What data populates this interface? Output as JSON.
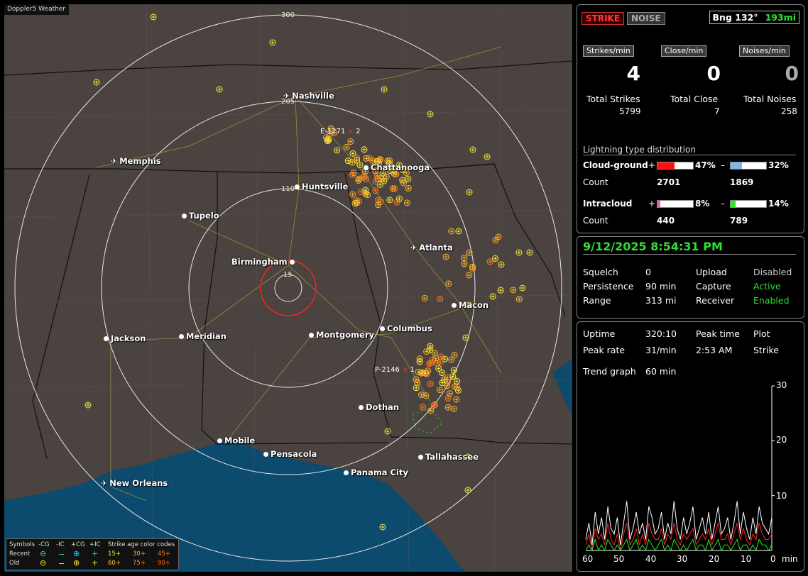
{
  "app": {
    "title": "Doppler5 Weather"
  },
  "map": {
    "cities": [
      {
        "name": "Nashville",
        "kind": "airport"
      },
      {
        "name": "Memphis",
        "kind": "airport"
      },
      {
        "name": "Chattanooga",
        "kind": "city"
      },
      {
        "name": "Huntsville",
        "kind": "city"
      },
      {
        "name": "Tupelo",
        "kind": "city"
      },
      {
        "name": "Atlanta",
        "kind": "airport"
      },
      {
        "name": "Birmingham",
        "kind": "city"
      },
      {
        "name": "Macon",
        "kind": "city"
      },
      {
        "name": "Columbus",
        "kind": "city"
      },
      {
        "name": "Jackson",
        "kind": "city"
      },
      {
        "name": "Meridian",
        "kind": "city"
      },
      {
        "name": "Montgomery",
        "kind": "city"
      },
      {
        "name": "Dothan",
        "kind": "city"
      },
      {
        "name": "Mobile",
        "kind": "city"
      },
      {
        "name": "Pensacola",
        "kind": "city"
      },
      {
        "name": "Tallahassee",
        "kind": "city"
      },
      {
        "name": "Panama City",
        "kind": "city"
      },
      {
        "name": "New Orleans",
        "kind": "airport"
      }
    ],
    "range_rings": [
      "300",
      "205",
      "110",
      "15"
    ],
    "storms": [
      {
        "id": "E-1271",
        "count": "2"
      },
      {
        "id": "P-2146",
        "count": "1"
      }
    ]
  },
  "legend": {
    "header": [
      "Symbols",
      "-CG",
      "-IC",
      "+CG",
      "+IC",
      "Strike age color codes"
    ],
    "recent_label": "Recent",
    "old_label": "Old",
    "recent_ages": [
      "15+",
      "30+",
      "45+"
    ],
    "old_ages": [
      "60+",
      "75+",
      "90+"
    ],
    "colors": {
      "recent_cyan": "#33ccdd",
      "old_yellow": "#ffee33",
      "age_15": "#ffee33",
      "age_30": "#ffb030",
      "age_45": "#ff8020",
      "age_60": "#ffc030",
      "age_75": "#ff8a30",
      "age_90": "#ff6a20"
    }
  },
  "status": {
    "strike_button": "STRIKE",
    "noise_button": "NOISE",
    "bearing": "Bng 132°",
    "range": "193mi",
    "rates": [
      {
        "label": "Strikes/min",
        "value": "4",
        "color": "#ffffff"
      },
      {
        "label": "Close/min",
        "value": "0",
        "color": "#ffffff"
      },
      {
        "label": "Noises/min",
        "value": "0",
        "color": "#aaaaaa"
      }
    ],
    "totals": [
      {
        "label": "Total Strikes",
        "value": "5799"
      },
      {
        "label": "Total Close",
        "value": "7"
      },
      {
        "label": "Total Noises",
        "value": "258"
      }
    ],
    "distribution": {
      "title": "Lightning type distribution",
      "cloud_ground_label": "Cloud-ground",
      "intracloud_label": "Intracloud",
      "count_label": "Count",
      "cg_pos": {
        "sign": "+",
        "pct": "47%",
        "fraction": 0.47,
        "color": "#ff1010",
        "count": "2701"
      },
      "cg_neg": {
        "sign": "–",
        "pct": "32%",
        "fraction": 0.32,
        "color": "#7fb8e8",
        "count": "1869"
      },
      "ic_pos": {
        "sign": "+",
        "pct": "8%",
        "fraction": 0.08,
        "color": "#e060b0",
        "count": "440"
      },
      "ic_neg": {
        "sign": "–",
        "pct": "14%",
        "fraction": 0.14,
        "color": "#22ee22",
        "count": "789"
      }
    }
  },
  "settings": {
    "datetime": "9/12/2025 8:54:31 PM",
    "squelch_label": "Squelch",
    "squelch": "0",
    "persistence_label": "Persistence",
    "persistence": "90 min",
    "range_label": "Range",
    "range": "313 mi",
    "upload_label": "Upload",
    "upload": "Disabled",
    "capture_label": "Capture",
    "capture": "Active",
    "receiver_label": "Receiver",
    "receiver": "Enabled"
  },
  "trend": {
    "uptime_label": "Uptime",
    "uptime": "320:10",
    "peak_time_label": "Peak time",
    "plot_label": "Plot",
    "peak_rate_label": "Peak rate",
    "peak_rate": "31/min",
    "peak_time": "2:53 AM",
    "plot": "Strike",
    "trend_graph_label": "Trend graph",
    "trend_graph": "60 min",
    "y_ticks": [
      "30",
      "20",
      "10"
    ],
    "x_ticks": [
      "60",
      "50",
      "40",
      "30",
      "20",
      "10",
      "0"
    ],
    "x_unit": "min"
  },
  "chart_data": {
    "type": "line",
    "ylim": [
      0,
      30
    ],
    "xlim": [
      60,
      0
    ],
    "xlabel": "min",
    "series": [
      {
        "color": "#ffffff",
        "values": [
          2,
          5,
          1,
          7,
          3,
          6,
          2,
          8,
          4,
          3,
          6,
          1,
          5,
          9,
          2,
          4,
          7,
          3,
          5,
          2,
          8,
          6,
          3,
          4,
          7,
          2,
          5,
          3,
          9,
          4,
          2,
          6,
          3,
          5,
          8,
          2,
          4,
          6,
          3,
          7,
          2,
          5,
          8,
          3,
          4,
          6,
          2,
          5,
          9,
          3,
          7,
          4,
          2,
          6,
          3,
          8,
          5,
          4,
          3,
          6
        ]
      },
      {
        "color": "#ff2020",
        "values": [
          1,
          3,
          0,
          4,
          2,
          3,
          1,
          5,
          2,
          1,
          3,
          0,
          3,
          5,
          1,
          2,
          4,
          1,
          3,
          1,
          5,
          3,
          2,
          2,
          4,
          1,
          3,
          2,
          5,
          2,
          1,
          3,
          2,
          3,
          4,
          1,
          2,
          3,
          2,
          4,
          1,
          3,
          5,
          2,
          2,
          3,
          1,
          3,
          5,
          2,
          4,
          2,
          1,
          3,
          2,
          5,
          3,
          2,
          2,
          3
        ]
      },
      {
        "color": "#22ee22",
        "values": [
          0,
          1,
          0,
          2,
          0,
          1,
          0,
          2,
          1,
          0,
          1,
          0,
          1,
          2,
          0,
          1,
          2,
          0,
          1,
          0,
          2,
          1,
          0,
          1,
          2,
          0,
          1,
          0,
          2,
          1,
          0,
          1,
          0,
          1,
          2,
          0,
          1,
          1,
          0,
          2,
          0,
          1,
          2,
          0,
          1,
          1,
          0,
          1,
          2,
          0,
          1,
          1,
          0,
          1,
          0,
          2,
          1,
          1,
          0,
          1
        ]
      }
    ]
  }
}
